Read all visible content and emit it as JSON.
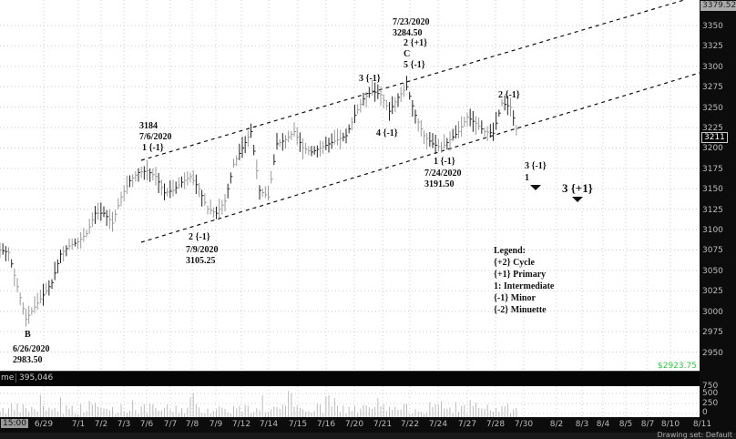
{
  "chart_data": {
    "type": "ohlc-bar",
    "instrument_last_price": "3211",
    "top_price_label": "3379.52",
    "bottom_price_label": "$2923.75",
    "ylim": [
      2925,
      3380
    ],
    "y_ticks": [
      "3350",
      "3325",
      "3300",
      "3275",
      "3250",
      "3225",
      "3200",
      "3175",
      "3150",
      "3125",
      "3100",
      "3075",
      "3050",
      "3025",
      "3000",
      "2975",
      "2950"
    ],
    "x_ticks": [
      "6/29",
      "7/1",
      "7/2",
      "7/3",
      "7/6",
      "7/7",
      "7/8",
      "7/9",
      "7/12",
      "7/14",
      "7/15",
      "7/16",
      "7/20",
      "7/21",
      "7/22",
      "7/24",
      "7/27",
      "7/28",
      "7/30",
      "8/2",
      "8/3",
      "8/4",
      "8/5",
      "8/7",
      "8/10",
      "8/11"
    ],
    "first_x_label": "15:00",
    "grid": true,
    "prices": [
      3075,
      3072,
      3030,
      2990,
      3005,
      3020,
      3035,
      3070,
      3080,
      3085,
      3095,
      3120,
      3120,
      3108,
      3140,
      3160,
      3170,
      3172,
      3165,
      3145,
      3148,
      3158,
      3165,
      3150,
      3125,
      3120,
      3135,
      3180,
      3200,
      3220,
      3148,
      3140,
      3205,
      3210,
      3220,
      3200,
      3195,
      3200,
      3205,
      3210,
      3215,
      3240,
      3260,
      3270,
      3265,
      3245,
      3262,
      3275,
      3240,
      3215,
      3205,
      3200,
      3210,
      3220,
      3238,
      3230,
      3220,
      3218,
      3255,
      3250,
      3210
    ],
    "volume": {
      "label": "me",
      "value": "395,046",
      "y_ticks": [
        "750",
        "500",
        "250",
        "0"
      ]
    },
    "annotations": {
      "b_label": "B",
      "b_date": "6/26/2020",
      "b_price": "2983.50",
      "w1_price": "3184",
      "w1_date": "7/6/2020",
      "w1_label": "1 {-1}",
      "w2_label": "2 {-1}",
      "w2_date": "7/9/2020",
      "w2_price": "3105.25",
      "w3_label": "3 {-1}",
      "w4_label": "4 {-1}",
      "c_date": "7/23/2020",
      "c_price": "3284.50",
      "c_primary": "2 {+1}",
      "c_label": "C",
      "c_minor": "5 {-1}",
      "low_label": "1 {-1}",
      "low_date": "7/24/2020",
      "low_price": "3191.50",
      "r2_label": "2 {-1}",
      "r3_label": "3 {-1}",
      "r3_int": "1",
      "p3_label": "3 {+1}"
    },
    "legend": {
      "title": "Legend:",
      "items": [
        "{+2} Cycle",
        "{+1} Primary",
        "1: Intermediate",
        "{-1} Minor",
        "{-2} Minuette"
      ]
    }
  },
  "toolbar": {
    "drawing_set": "Drawing set: Default"
  }
}
